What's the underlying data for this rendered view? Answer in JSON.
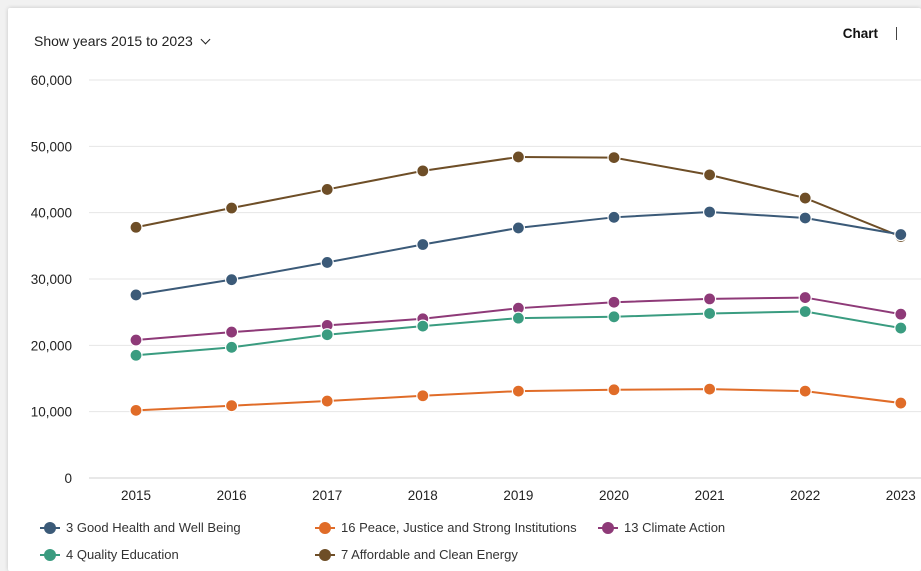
{
  "controls": {
    "year_range_label": "Show years 2015 to 2023",
    "view_active_label": "Chart"
  },
  "chart_data": {
    "type": "line",
    "title": "",
    "xlabel": "",
    "ylabel": "",
    "categories": [
      "2015",
      "2016",
      "2017",
      "2018",
      "2019",
      "2020",
      "2021",
      "2022",
      "2023"
    ],
    "ylim": [
      0,
      60000
    ],
    "yticks": [
      0,
      10000,
      20000,
      30000,
      40000,
      50000,
      60000
    ],
    "ytick_labels": [
      "0",
      "10,000",
      "20,000",
      "30,000",
      "40,000",
      "50,000",
      "60,000"
    ],
    "grid": true,
    "legend_position": "bottom",
    "series": [
      {
        "name": "7 Affordable and Clean Energy",
        "color": "#6e4e27",
        "values": [
          37800,
          40700,
          43500,
          46300,
          48400,
          48300,
          45700,
          42200,
          36400
        ]
      },
      {
        "name": "3 Good Health and Well Being",
        "color": "#3b5a78",
        "values": [
          27600,
          29900,
          32500,
          35200,
          37700,
          39300,
          40100,
          39200,
          36700
        ]
      },
      {
        "name": "13 Climate Action",
        "color": "#8e3a78",
        "values": [
          20800,
          22000,
          23000,
          24000,
          25600,
          26500,
          27000,
          27200,
          24700
        ]
      },
      {
        "name": "4 Quality Education",
        "color": "#3a9c80",
        "values": [
          18500,
          19700,
          21600,
          22900,
          24100,
          24300,
          24800,
          25100,
          22600
        ]
      },
      {
        "name": "16 Peace, Justice and Strong Institutions",
        "color": "#e06c28",
        "values": [
          10200,
          10900,
          11600,
          12400,
          13100,
          13300,
          13400,
          13100,
          11300
        ]
      }
    ]
  },
  "legend": {
    "items": [
      {
        "label": "3 Good Health and Well Being",
        "color": "#3b5a78"
      },
      {
        "label": "16 Peace, Justice and Strong Institutions",
        "color": "#e06c28"
      },
      {
        "label": "13 Climate Action",
        "color": "#8e3a78"
      },
      {
        "label": "4 Quality Education",
        "color": "#3a9c80"
      },
      {
        "label": "7 Affordable and Clean Energy",
        "color": "#6e4e27"
      }
    ]
  }
}
